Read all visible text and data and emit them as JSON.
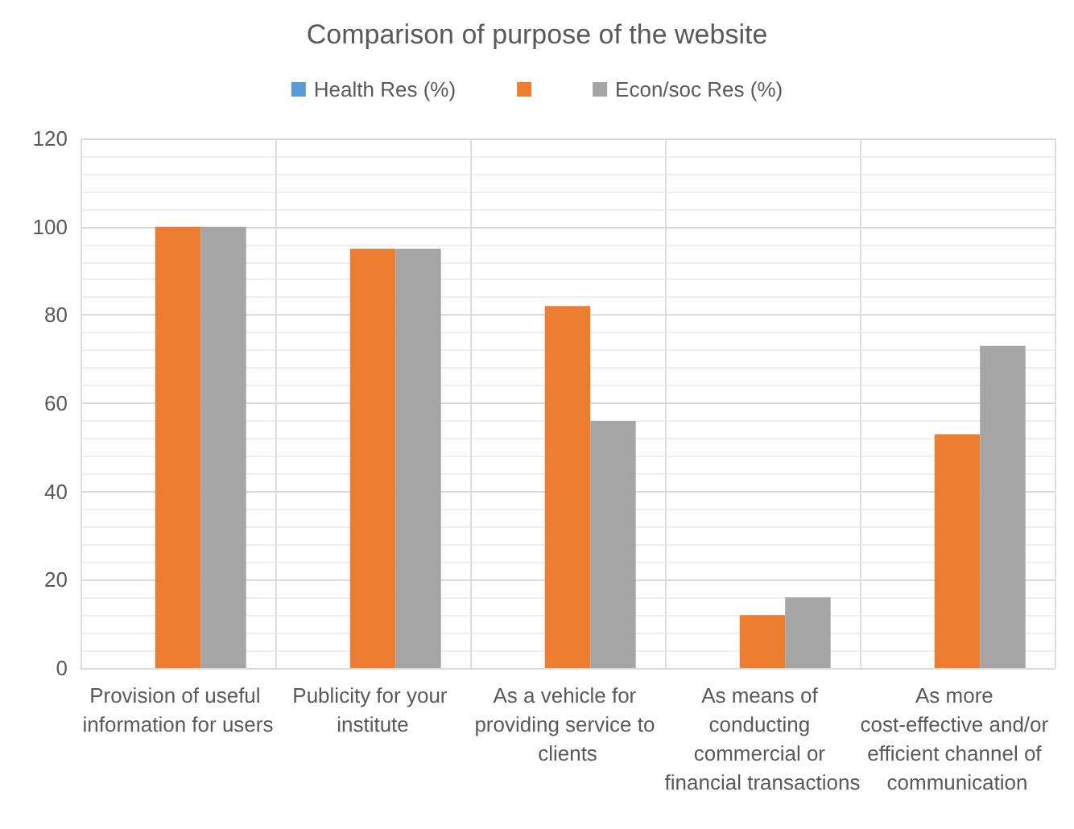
{
  "chart_data": {
    "type": "bar",
    "title": "Comparison of purpose of the website",
    "categories": [
      "Provision of useful information for users",
      "Publicity for your institute",
      "As a vehicle for providing service to clients",
      "As means of conducting commercial or financial transactions",
      "As more cost-effective and/or efficient channel of communication"
    ],
    "series": [
      {
        "name": "Health Res (%)",
        "color": "#5b9bd5",
        "values": [
          null,
          null,
          null,
          null,
          null
        ]
      },
      {
        "color": "#ed7d31",
        "values": [
          100,
          95,
          82,
          12,
          53
        ]
      },
      {
        "name": "Econ/soc Res (%)",
        "color": "#a5a5a5",
        "values": [
          100,
          95,
          56,
          16,
          73
        ]
      }
    ],
    "ylim": [
      0,
      120
    ],
    "yticks": [
      0,
      20,
      40,
      60,
      80,
      100,
      120
    ],
    "grid": true,
    "legend": "top"
  }
}
